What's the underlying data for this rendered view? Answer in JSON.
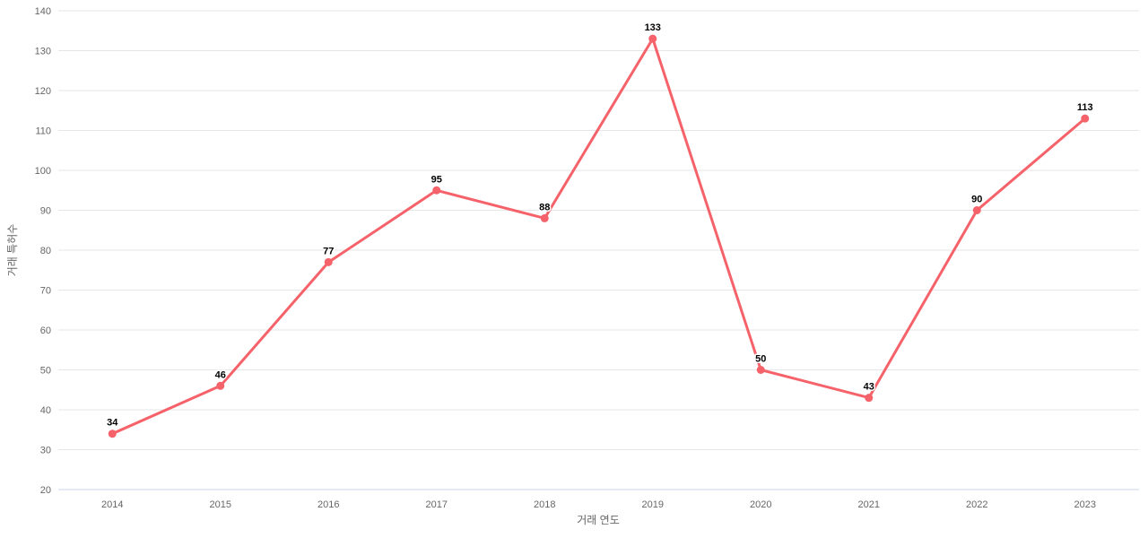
{
  "chart_data": {
    "type": "line",
    "x": [
      "2014",
      "2015",
      "2016",
      "2017",
      "2018",
      "2019",
      "2020",
      "2021",
      "2022",
      "2023"
    ],
    "series": [
      {
        "name": "거래 특허수",
        "values": [
          34,
          46,
          77,
          95,
          88,
          133,
          50,
          43,
          90,
          113
        ]
      }
    ],
    "title": "",
    "xlabel": "거래 연도",
    "ylabel": "거래 특허수",
    "ylim": [
      20,
      140
    ],
    "ytick_step": 10,
    "yticks": [
      20,
      30,
      40,
      50,
      60,
      70,
      80,
      90,
      100,
      110,
      120,
      130,
      140
    ],
    "grid": "horizontal",
    "legend": "none",
    "data_labels_visible": true,
    "colors": {
      "series_line": "#f5626a",
      "series_marker": "#f5626a",
      "gridline": "#e6e6e6",
      "axis_line": "#ccd6eb",
      "tick_text": "#666666",
      "axis_title_text": "#666666",
      "data_label_text": "#000000",
      "background": "#ffffff"
    }
  }
}
